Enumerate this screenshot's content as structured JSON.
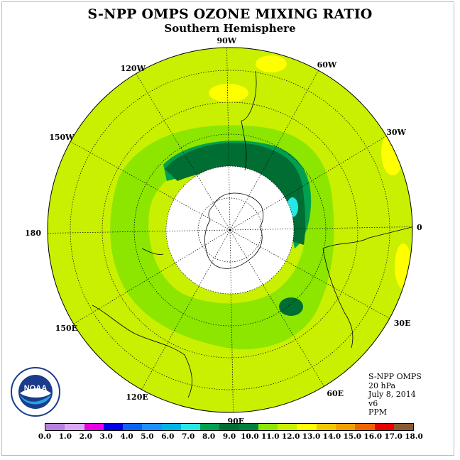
{
  "title": "S-NPP OMPS OZONE MIXING RATIO",
  "subtitle": "Southern Hemisphere",
  "longitude_labels": [
    "90W",
    "60W",
    "30W",
    "0",
    "30E",
    "60E",
    "90E",
    "120E",
    "150E",
    "180",
    "150W",
    "120W"
  ],
  "info": {
    "instrument": "S-NPP OMPS",
    "level": "20 hPa",
    "date": "July 8, 2014",
    "version": "v6",
    "units": "PPM"
  },
  "logo": {
    "text": "NOAA",
    "icon": "noaa-logo"
  },
  "colorbar": {
    "ticks": [
      "0.0",
      "1.0",
      "2.0",
      "3.0",
      "4.0",
      "5.0",
      "6.0",
      "7.0",
      "8.0",
      "9.0",
      "10.0",
      "11.0",
      "12.0",
      "13.0",
      "14.0",
      "15.0",
      "16.0",
      "17.0",
      "18.0"
    ],
    "colors": [
      "#b87fe0",
      "#d9a8f0",
      "#e600e6",
      "#0000e6",
      "#0a64f0",
      "#1e90ff",
      "#00b4e6",
      "#28e6e6",
      "#00a050",
      "#006e32",
      "#00823c",
      "#8ce600",
      "#c8f000",
      "#ffff00",
      "#f0c800",
      "#f0a000",
      "#f06400",
      "#e60000",
      "#8c5a32"
    ]
  },
  "colors": {
    "background_field": "#c8f000",
    "band_light": "#8ce600",
    "band_mid": "#00a050",
    "band_dark": "#006e32",
    "high_yellow": "#ffff00",
    "cyan": "#28e6e6",
    "pole_white": "#ffffff"
  }
}
